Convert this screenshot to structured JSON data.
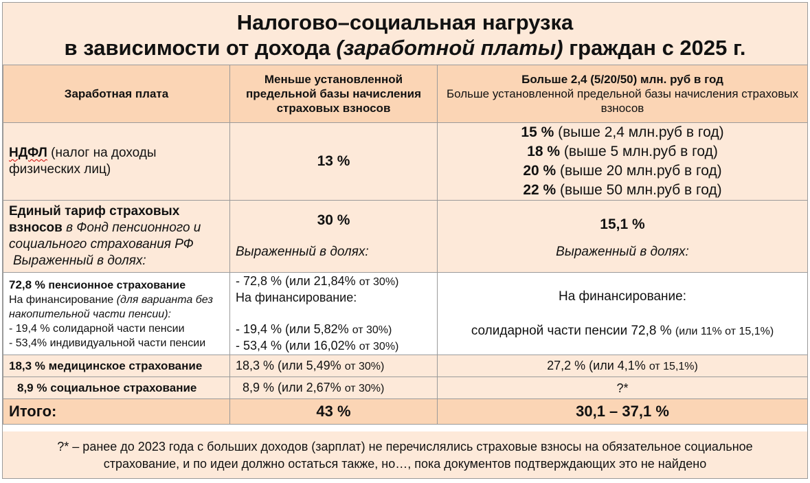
{
  "title": {
    "line1": "Налогово–социальная нагрузка",
    "line2_prefix": "в зависимости от дохода ",
    "line2_italic": "(заработной платы)",
    "line2_suffix": " граждан с 2025 г."
  },
  "header": {
    "col1": "Заработная  плата",
    "col2": "Меньше установленной предельной базы начисления страховых взносов",
    "col3_bold": "Больше 2,4 (5/20/50) млн. руб в год",
    "col3_sub": "Больше установленной предельной базы начисления страховых взносов"
  },
  "ndfl": {
    "label_bold": "НДФЛ",
    "label_rest": " (налог на доходы физических лиц)",
    "value_below": "13 %",
    "above": [
      {
        "rate": "15 %",
        "text": " (выше 2,4 млн.руб в год)"
      },
      {
        "rate": "18 %",
        "text": " (выше 5 млн.руб в год)"
      },
      {
        "rate": "20 %",
        "text": " (выше 20 млн.руб в год)"
      },
      {
        "rate": "22 %",
        "text": " (выше 50 млн.руб в год)"
      }
    ]
  },
  "insurance": {
    "label_bold": "Единый тариф страховых взносов",
    "label_italic": " в Фонд пенсионного и социального страхования РФ",
    "label_shares": "Выраженный в долях:",
    "value_below": "30 %",
    "value_above": "15,1 %",
    "shares_below": "Выраженный в долях:",
    "shares_above": "Выраженный в долях:"
  },
  "pension": {
    "rate": "72,8 %",
    "name": "  пенсионное страхование",
    "fin_label": "На финансирование ",
    "fin_note": "(для варианта без накопительной части пенсии):",
    "sol": "- 19,4 %  солидарной части пенсии",
    "ind": "-  53,4% индивидуальной части пенсии",
    "below_total": "- 72,8 %  (или 21,84% ",
    "below_total_small": "от 30%)",
    "below_fin": "На финансирование:",
    "below_sol": "- 19,4 %  (или 5,82% ",
    "below_sol_small": "от 30%)",
    "below_ind": "- 53,4 % (или 16,02% ",
    "below_ind_small": "от 30%)",
    "above_fin": "На финансирование:",
    "above_sol": "солидарной части пенсии 72,8 %  ",
    "above_sol_small": "(или 11% от 15,1%)"
  },
  "medical": {
    "rate": "18,3 %",
    "name": "  медицинское страхование",
    "below": "18,3 %  (или 5,49% ",
    "below_small": "от 30%)",
    "above": "27,2 %  (или 4,1% ",
    "above_small": "от 15,1%)"
  },
  "social": {
    "rate": "8,9 %",
    "name": "  социальное страхование",
    "below": "8,9 %  (или 2,67% ",
    "below_small": "от 30%)",
    "above": "?*"
  },
  "total": {
    "label": "Итого:",
    "below": "43 %",
    "above": "30,1 – 37,1 %"
  },
  "footnote": {
    "line1": "?* – ранее до 2023 года с больших доходов (зарплат) не перечислялись страховые взносы на обязательное социальное",
    "line2": "страхование, и по идеи должно остаться также, но…, пока документов подтверждающих это не найдено"
  },
  "colors": {
    "title_bg": "#fde9d9",
    "header_bg": "#fbd5b5",
    "row_bg": "#fde9d9",
    "border": "#9a9a9a"
  }
}
